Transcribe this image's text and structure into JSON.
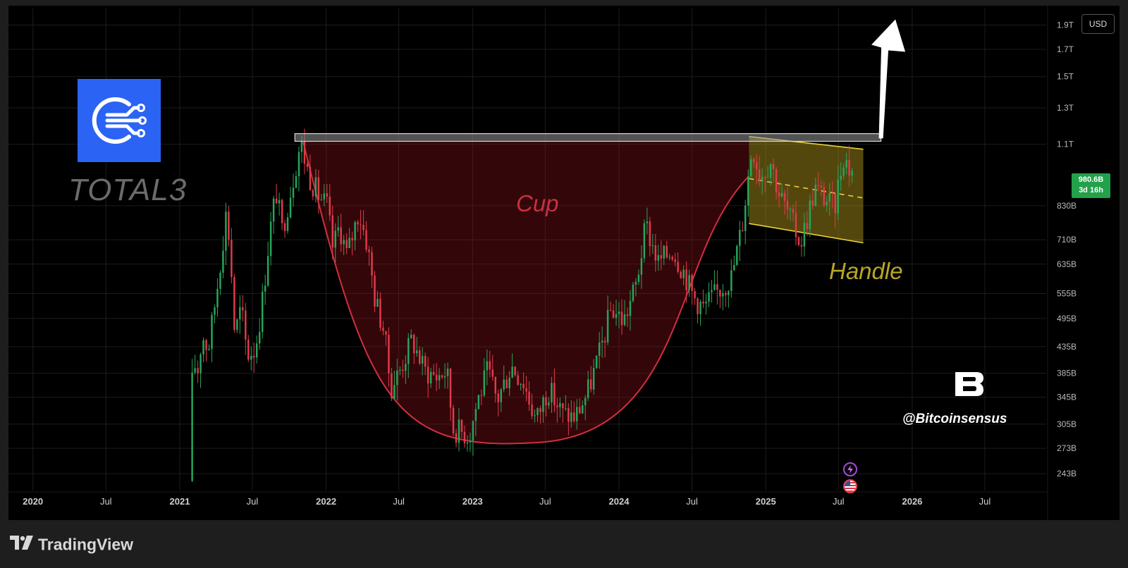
{
  "header": {
    "currency": "USD"
  },
  "symbol": {
    "ticker": "TOTAL3",
    "logo_icon": "total3-network-icon",
    "logo_color": "#2b63f5"
  },
  "last_price": {
    "value": "980.6B",
    "countdown": "3d 16h",
    "color": "#22a14a"
  },
  "annotations": {
    "cup": "Cup",
    "handle": "Handle",
    "watermark": "@Bitcoinsensus"
  },
  "footer": {
    "brand": "TradingView"
  },
  "chart_data": {
    "type": "candlestick",
    "x_tick_labels": [
      "2020",
      "Jul",
      "2021",
      "Jul",
      "2022",
      "Jul",
      "2023",
      "Jul",
      "2024",
      "Jul",
      "2025",
      "Jul",
      "2026",
      "Jul"
    ],
    "x_ticks": [
      "2020-01-01",
      "2020-07-01",
      "2021-01-01",
      "2021-07-01",
      "2022-01-01",
      "2022-07-01",
      "2023-01-01",
      "2023-07-01",
      "2024-01-01",
      "2024-07-01",
      "2025-01-01",
      "2025-07-01",
      "2026-01-01",
      "2026-07-01"
    ],
    "y_tick_labels": [
      "1.9T",
      "1.7T",
      "1.5T",
      "1.3T",
      "1.1T",
      "830B",
      "710B",
      "635B",
      "555B",
      "495B",
      "435B",
      "385B",
      "345B",
      "305B",
      "273B",
      "243B"
    ],
    "y_ticks": [
      1900,
      1700,
      1500,
      1300,
      1100,
      830,
      710,
      635,
      555,
      495,
      435,
      385,
      345,
      305,
      273,
      243
    ],
    "y_scale": "log",
    "y_unit": "B",
    "xlim": [
      "2019-11-01",
      "2026-12-01"
    ],
    "ylim": [
      225,
      2050
    ],
    "up_color": "#26a65b",
    "down_color": "#e03a4a",
    "grid": true,
    "price_path": [
      [
        "2021-02-01",
        235
      ],
      [
        "2021-02-10",
        420
      ],
      [
        "2021-02-20",
        380
      ],
      [
        "2021-03-05",
        460
      ],
      [
        "2021-03-20",
        430
      ],
      [
        "2021-04-10",
        560
      ],
      [
        "2021-05-05",
        820
      ],
      [
        "2021-05-15",
        650
      ],
      [
        "2021-05-25",
        460
      ],
      [
        "2021-06-10",
        520
      ],
      [
        "2021-06-25",
        420
      ],
      [
        "2021-07-15",
        430
      ],
      [
        "2021-08-01",
        530
      ],
      [
        "2021-08-20",
        730
      ],
      [
        "2021-09-05",
        890
      ],
      [
        "2021-09-20",
        740
      ],
      [
        "2021-10-10",
        880
      ],
      [
        "2021-11-05",
        1110
      ],
      [
        "2021-11-25",
        960
      ],
      [
        "2021-12-20",
        870
      ],
      [
        "2022-01-10",
        830
      ],
      [
        "2022-01-25",
        680
      ],
      [
        "2022-02-10",
        760
      ],
      [
        "2022-03-01",
        660
      ],
      [
        "2022-03-30",
        810
      ],
      [
        "2022-04-20",
        700
      ],
      [
        "2022-05-10",
        540
      ],
      [
        "2022-06-01",
        470
      ],
      [
        "2022-06-18",
        360
      ],
      [
        "2022-07-10",
        390
      ],
      [
        "2022-08-10",
        450
      ],
      [
        "2022-09-10",
        390
      ],
      [
        "2022-10-10",
        380
      ],
      [
        "2022-11-05",
        390
      ],
      [
        "2022-11-20",
        300
      ],
      [
        "2022-12-31",
        290
      ],
      [
        "2023-01-20",
        340
      ],
      [
        "2023-02-15",
        390
      ],
      [
        "2023-03-10",
        340
      ],
      [
        "2023-04-15",
        400
      ],
      [
        "2023-05-15",
        370
      ],
      [
        "2023-06-15",
        310
      ],
      [
        "2023-07-15",
        360
      ],
      [
        "2023-08-20",
        320
      ],
      [
        "2023-09-20",
        315
      ],
      [
        "2023-10-20",
        350
      ],
      [
        "2023-11-20",
        420
      ],
      [
        "2023-12-20",
        520
      ],
      [
        "2024-01-20",
        490
      ],
      [
        "2024-02-20",
        580
      ],
      [
        "2024-03-15",
        760
      ],
      [
        "2024-04-15",
        640
      ],
      [
        "2024-05-20",
        680
      ],
      [
        "2024-06-20",
        610
      ],
      [
        "2024-07-10",
        550
      ],
      [
        "2024-08-05",
        520
      ],
      [
        "2024-09-10",
        560
      ],
      [
        "2024-10-15",
        600
      ],
      [
        "2024-11-10",
        760
      ],
      [
        "2024-12-05",
        1100
      ],
      [
        "2024-12-25",
        950
      ],
      [
        "2025-01-20",
        1020
      ],
      [
        "2025-02-10",
        880
      ],
      [
        "2025-03-05",
        800
      ],
      [
        "2025-04-05",
        700
      ],
      [
        "2025-05-10",
        900
      ],
      [
        "2025-06-10",
        850
      ],
      [
        "2025-06-28",
        820
      ],
      [
        "2025-07-10",
        940
      ],
      [
        "2025-07-20",
        1050
      ],
      [
        "2025-08-05",
        980.6
      ]
    ],
    "cup_pattern": {
      "label": "Cup",
      "start": [
        "2021-11-05",
        1110
      ],
      "bottom": [
        "2023-06-01",
        280
      ],
      "end": [
        "2024-11-20",
        950
      ]
    },
    "resistance_zone": {
      "from": "2021-10-15",
      "to": "2025-10-15",
      "low": 1115,
      "high": 1155
    },
    "handle_channel": {
      "label": "Handle",
      "from": "2024-11-20",
      "to": "2025-09-01",
      "upper": [
        1140,
        1075
      ],
      "lower": [
        765,
        700
      ],
      "mid": [
        940,
        860
      ]
    },
    "breakout_arrow": {
      "from": [
        "2025-10-15",
        1130
      ],
      "to": [
        "2025-11-20",
        1950
      ]
    },
    "event_markers": [
      {
        "date": "2025-07-25",
        "icon": "lightning-icon",
        "color": "#a24cd6"
      },
      {
        "date": "2025-07-25",
        "icon": "us-flag-icon",
        "color": "#e23b4a"
      }
    ]
  }
}
